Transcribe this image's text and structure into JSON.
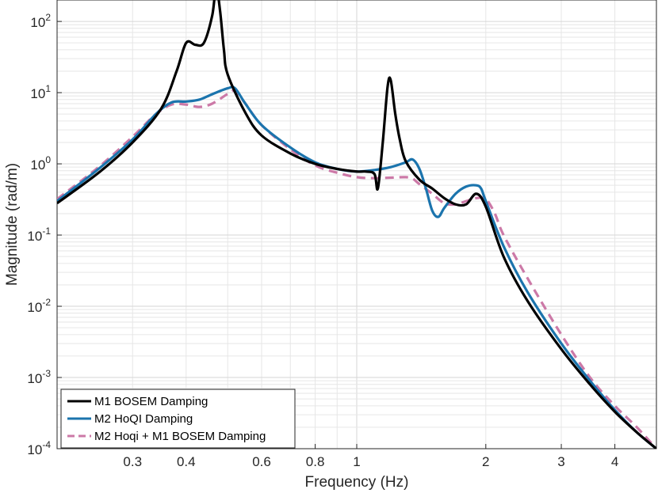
{
  "chart_data": {
    "type": "line",
    "xlabel": "Frequency (Hz)",
    "ylabel": "Magnitude (rad/m)",
    "xscale": "log",
    "yscale": "log",
    "xlim": [
      0.2,
      5.0
    ],
    "ylim": [
      0.0001,
      200
    ],
    "grid": true,
    "legend_position": "bottom-left",
    "x_tick_labels": [
      {
        "value": 0.3,
        "label": "0.3"
      },
      {
        "value": 0.4,
        "label": "0.4"
      },
      {
        "value": 0.6,
        "label": "0.6"
      },
      {
        "value": 0.8,
        "label": "0.8"
      },
      {
        "value": 1,
        "label": "1"
      },
      {
        "value": 2,
        "label": "2"
      },
      {
        "value": 3,
        "label": "3"
      },
      {
        "value": 4,
        "label": "4"
      }
    ],
    "y_tick_labels": [
      {
        "value": 0.0001,
        "base": "10",
        "exp": "-4"
      },
      {
        "value": 0.001,
        "base": "10",
        "exp": "-3"
      },
      {
        "value": 0.01,
        "base": "10",
        "exp": "-2"
      },
      {
        "value": 0.1,
        "base": "10",
        "exp": "-1"
      },
      {
        "value": 1,
        "base": "10",
        "exp": "0"
      },
      {
        "value": 10,
        "base": "10",
        "exp": "1"
      },
      {
        "value": 100,
        "base": "10",
        "exp": "2"
      }
    ],
    "series": [
      {
        "name": "M1 BOSEM Damping",
        "color": "#000000",
        "dash": "solid",
        "x": [
          0.2,
          0.25,
          0.3,
          0.35,
          0.38,
          0.4,
          0.42,
          0.44,
          0.46,
          0.47,
          0.48,
          0.49,
          0.5,
          0.55,
          0.6,
          0.7,
          0.8,
          0.9,
          1.0,
          1.05,
          1.1,
          1.12,
          1.15,
          1.18,
          1.2,
          1.23,
          1.26,
          1.3,
          1.4,
          1.5,
          1.6,
          1.7,
          1.8,
          1.9,
          2.0,
          2.2,
          2.5,
          3.0,
          3.5,
          4.0,
          4.5,
          5.0
        ],
        "y": [
          0.28,
          0.75,
          2.0,
          6.0,
          20,
          50,
          47,
          50,
          120,
          300,
          140,
          40,
          18,
          5.2,
          2.5,
          1.4,
          1.0,
          0.85,
          0.78,
          0.78,
          0.72,
          0.45,
          2.0,
          12,
          15,
          5.0,
          2.2,
          1.1,
          0.6,
          0.45,
          0.33,
          0.27,
          0.27,
          0.38,
          0.25,
          0.05,
          0.012,
          0.0025,
          0.0008,
          0.00033,
          0.00017,
          0.0001
        ]
      },
      {
        "name": "M2 HoQI Damping",
        "color": "#1b74ad",
        "dash": "solid",
        "x": [
          0.2,
          0.25,
          0.3,
          0.34,
          0.37,
          0.4,
          0.43,
          0.46,
          0.5,
          0.52,
          0.55,
          0.6,
          0.7,
          0.8,
          0.9,
          1.0,
          1.1,
          1.2,
          1.3,
          1.35,
          1.4,
          1.45,
          1.5,
          1.55,
          1.6,
          1.7,
          1.8,
          1.9,
          1.95,
          2.0,
          2.2,
          2.5,
          3.0,
          3.5,
          4.0,
          4.5,
          5.0
        ],
        "y": [
          0.3,
          0.85,
          2.2,
          5.0,
          7.3,
          7.5,
          8.0,
          9.5,
          11.5,
          11.5,
          7.0,
          3.5,
          1.7,
          1.05,
          0.85,
          0.78,
          0.82,
          0.9,
          1.05,
          1.15,
          0.85,
          0.45,
          0.22,
          0.18,
          0.24,
          0.38,
          0.48,
          0.5,
          0.45,
          0.3,
          0.07,
          0.016,
          0.003,
          0.0009,
          0.00035,
          0.00017,
          0.0001
        ]
      },
      {
        "name": "M2 Hoqi + M1 BOSEM Damping",
        "color": "#cc79a7",
        "dash": "dashed",
        "x": [
          0.2,
          0.25,
          0.3,
          0.34,
          0.37,
          0.4,
          0.43,
          0.46,
          0.5,
          0.52,
          0.55,
          0.6,
          0.7,
          0.8,
          0.9,
          1.0,
          1.1,
          1.2,
          1.3,
          1.35,
          1.4,
          1.5,
          1.6,
          1.7,
          1.8,
          1.9,
          2.0,
          2.1,
          2.2,
          2.5,
          3.0,
          3.5,
          4.0,
          4.5,
          5.0
        ],
        "y": [
          0.32,
          0.9,
          2.4,
          5.0,
          6.8,
          6.8,
          6.3,
          7.0,
          9.6,
          10.5,
          7.0,
          3.5,
          1.6,
          0.95,
          0.75,
          0.65,
          0.63,
          0.64,
          0.65,
          0.62,
          0.52,
          0.38,
          0.28,
          0.27,
          0.3,
          0.33,
          0.32,
          0.2,
          0.1,
          0.025,
          0.004,
          0.001,
          0.0004,
          0.0002,
          0.0001
        ]
      }
    ]
  }
}
